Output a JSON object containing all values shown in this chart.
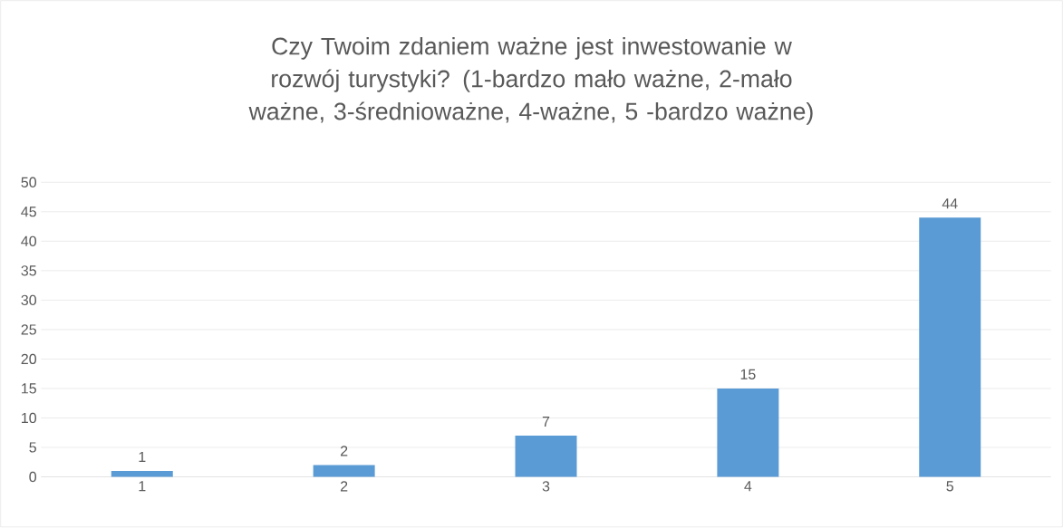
{
  "chart_data": {
    "type": "bar",
    "title": "Czy Twoim zdaniem ważne jest inwestowanie w rozwój turystyki? (1-bardzo mało ważne, 2-mało ważne, 3-średnioważne, 4-ważne, 5 -bardzo ważne)",
    "categories": [
      "1",
      "2",
      "3",
      "4",
      "5"
    ],
    "values": [
      1,
      2,
      7,
      15,
      44
    ],
    "color": "#5b9bd5",
    "ylim": [
      0,
      50
    ],
    "yticks": [
      0,
      5,
      10,
      15,
      20,
      25,
      30,
      35,
      40,
      45,
      50
    ],
    "grid": "y",
    "data_labels": true
  }
}
